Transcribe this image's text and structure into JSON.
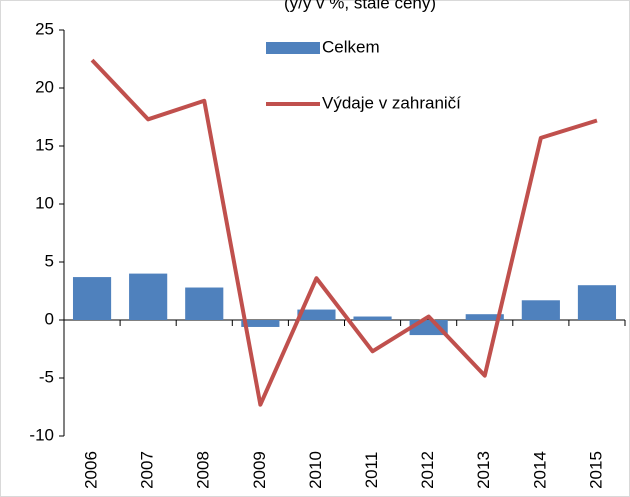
{
  "chart_data": {
    "type": "bar_line",
    "title": "(y/y v %, stálé ceny)",
    "categories": [
      "2006",
      "2007",
      "2008",
      "2009",
      "2010",
      "2011",
      "2012",
      "2013",
      "2014",
      "2015"
    ],
    "series": [
      {
        "name": "Celkem",
        "type": "bar",
        "color": "#4f81bd",
        "values": [
          3.7,
          4.0,
          2.8,
          -0.6,
          0.9,
          0.3,
          -1.3,
          0.5,
          1.7,
          3.0
        ]
      },
      {
        "name": "Výdaje v zahraničí",
        "type": "line",
        "color": "#c0504d",
        "values": [
          22.4,
          17.3,
          18.9,
          -7.3,
          3.6,
          -2.7,
          0.3,
          -4.8,
          15.7,
          17.2
        ]
      }
    ],
    "ylim": [
      -10,
      25
    ],
    "yticks": [
      -10,
      -5,
      0,
      5,
      10,
      15,
      20,
      25
    ],
    "grid": false
  }
}
